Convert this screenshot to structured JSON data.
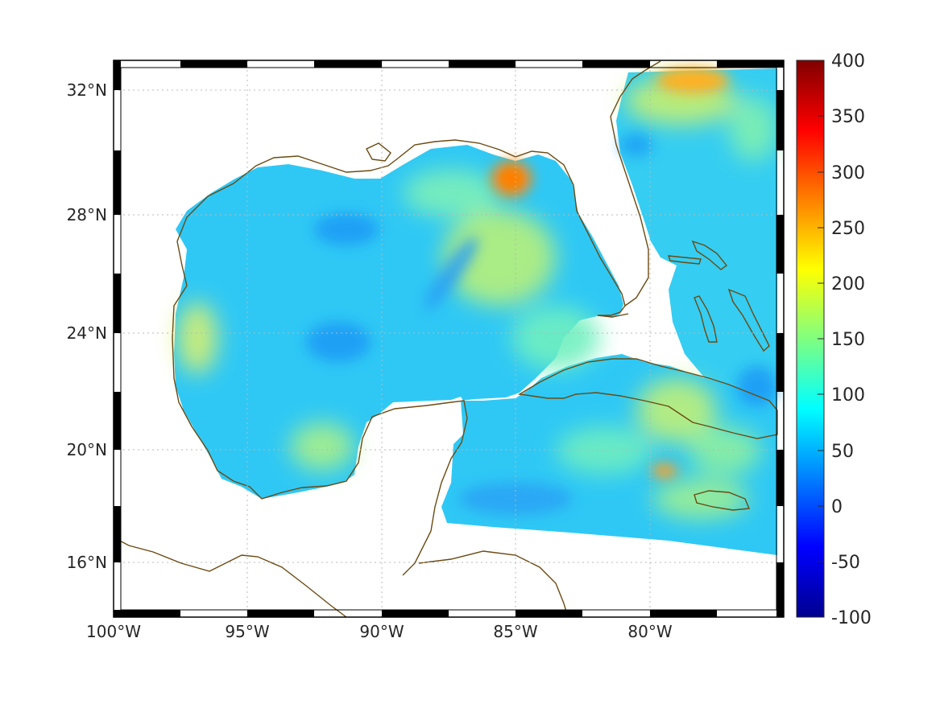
{
  "map": {
    "projection": "mercator",
    "lon_range": [
      -100,
      -75
    ],
    "lat_range": [
      14.2,
      33
    ],
    "variable_colors": [
      "#00008f",
      "#0000ff",
      "#0080ff",
      "#00ffff",
      "#80ff80",
      "#ffff00",
      "#ff8000",
      "#ff0000",
      "#800000"
    ],
    "coastline_color": "#6b4a12",
    "grid": "on",
    "regions_shown": [
      "Gulf of Mexico",
      "Florida",
      "Cuba",
      "Bahamas",
      "Yucatan Peninsula",
      "Jamaica"
    ]
  },
  "axes": {
    "x_ticks": [
      "100°W",
      "95°W",
      "90°W",
      "85°W",
      "80°W"
    ],
    "y_ticks": [
      "32°N",
      "28°N",
      "24°N",
      "20°N",
      "16°N"
    ]
  },
  "colorbar": {
    "min": -100,
    "max": 400,
    "ticks": [
      "400",
      "350",
      "300",
      "250",
      "200",
      "150",
      "100",
      "50",
      "0",
      "-50",
      "-100"
    ]
  }
}
